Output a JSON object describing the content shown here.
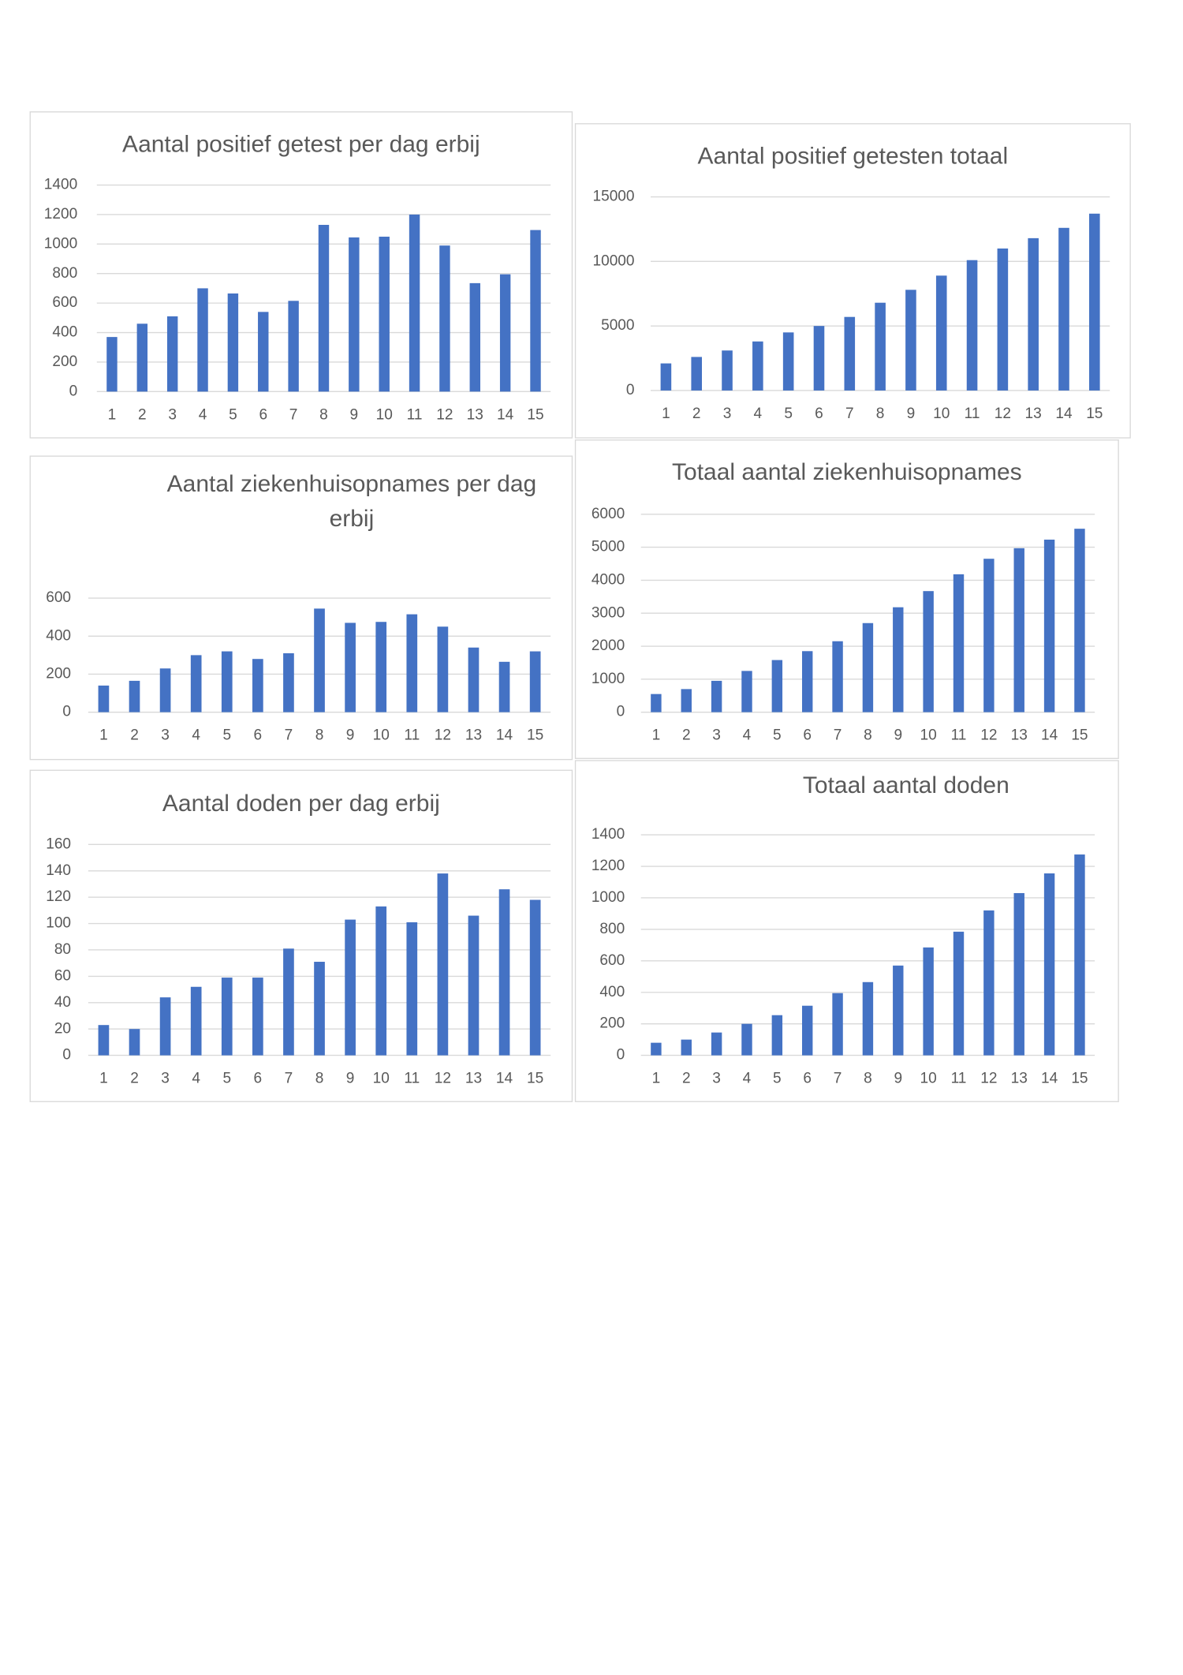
{
  "chart_data": [
    {
      "type": "bar",
      "title": "Aantal positief getest per dag erbij",
      "categories": [
        "1",
        "2",
        "3",
        "4",
        "5",
        "6",
        "7",
        "8",
        "9",
        "10",
        "11",
        "12",
        "13",
        "14",
        "15"
      ],
      "values": [
        370,
        460,
        510,
        700,
        665,
        540,
        615,
        1130,
        1045,
        1050,
        1200,
        990,
        735,
        795,
        1095
      ],
      "color": "#4472c4",
      "ylim": [
        0,
        1400
      ],
      "yticks": [
        0,
        200,
        400,
        600,
        800,
        1000,
        1200,
        1400
      ],
      "grid": true
    },
    {
      "type": "bar",
      "title": "Aantal positief getesten totaal",
      "categories": [
        "1",
        "2",
        "3",
        "4",
        "5",
        "6",
        "7",
        "8",
        "9",
        "10",
        "11",
        "12",
        "13",
        "14",
        "15"
      ],
      "values": [
        2100,
        2600,
        3100,
        3800,
        4500,
        5000,
        5700,
        6800,
        7800,
        8900,
        10100,
        11000,
        11800,
        12600,
        13700
      ],
      "color": "#4472c4",
      "ylim": [
        0,
        15000
      ],
      "yticks": [
        0,
        5000,
        10000,
        15000
      ],
      "grid": true
    },
    {
      "type": "bar",
      "title": "Aantal ziekenhuisopnames per dag erbij",
      "categories": [
        "1",
        "2",
        "3",
        "4",
        "5",
        "6",
        "7",
        "8",
        "9",
        "10",
        "11",
        "12",
        "13",
        "14",
        "15"
      ],
      "values": [
        140,
        165,
        230,
        300,
        320,
        280,
        310,
        545,
        470,
        475,
        515,
        450,
        340,
        265,
        320
      ],
      "color": "#4472c4",
      "ylim": [
        0,
        600
      ],
      "yticks": [
        0,
        200,
        400,
        600
      ],
      "grid": true
    },
    {
      "type": "bar",
      "title": "Totaal aantal ziekenhuisopnames",
      "categories": [
        "1",
        "2",
        "3",
        "4",
        "5",
        "6",
        "7",
        "8",
        "9",
        "10",
        "11",
        "12",
        "13",
        "14",
        "15"
      ],
      "values": [
        550,
        700,
        950,
        1250,
        1580,
        1850,
        2150,
        2700,
        3180,
        3670,
        4180,
        4650,
        4970,
        5230,
        5560
      ],
      "color": "#4472c4",
      "ylim": [
        0,
        6000
      ],
      "yticks": [
        0,
        1000,
        2000,
        3000,
        4000,
        5000,
        6000
      ],
      "grid": true
    },
    {
      "type": "bar",
      "title": "Aantal doden per dag erbij",
      "categories": [
        "1",
        "2",
        "3",
        "4",
        "5",
        "6",
        "7",
        "8",
        "9",
        "10",
        "11",
        "12",
        "13",
        "14",
        "15"
      ],
      "values": [
        23,
        20,
        44,
        52,
        59,
        59,
        81,
        71,
        103,
        113,
        101,
        138,
        106,
        126,
        118
      ],
      "color": "#4472c4",
      "ylim": [
        0,
        160
      ],
      "yticks": [
        0,
        20,
        40,
        60,
        80,
        100,
        120,
        140,
        160
      ],
      "grid": true
    },
    {
      "type": "bar",
      "title": "Totaal aantal doden",
      "categories": [
        "1",
        "2",
        "3",
        "4",
        "5",
        "6",
        "7",
        "8",
        "9",
        "10",
        "11",
        "12",
        "13",
        "14",
        "15"
      ],
      "values": [
        80,
        100,
        145,
        200,
        255,
        315,
        395,
        465,
        570,
        685,
        785,
        920,
        1030,
        1155,
        1275
      ],
      "color": "#4472c4",
      "ylim": [
        0,
        1400
      ],
      "yticks": [
        0,
        200,
        400,
        600,
        800,
        1000,
        1200,
        1400
      ],
      "grid": true
    }
  ]
}
